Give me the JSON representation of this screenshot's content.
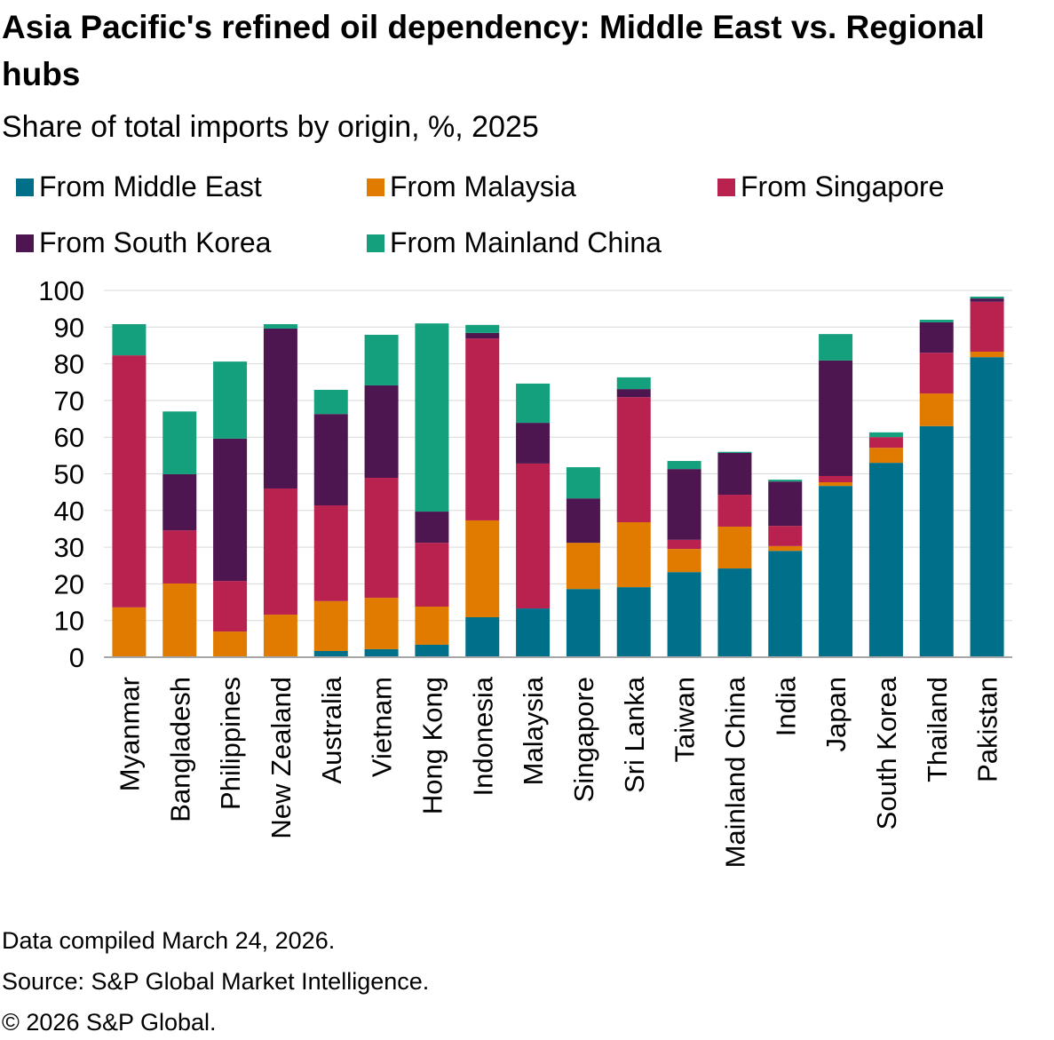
{
  "title": "Asia Pacific's refined oil dependency: Middle East vs. Regional hubs",
  "subtitle": "Share of total imports by origin, %, 2025",
  "footer": {
    "line1": "Data compiled March 24, 2026.",
    "line2": "Source: S&P Global Market Intelligence.",
    "line3": "© 2026 S&P Global."
  },
  "chart_data": {
    "type": "bar",
    "stacked": true,
    "title": "Asia Pacific's refined oil dependency: Middle East vs. Regional hubs",
    "subtitle": "Share of total imports by origin, %, 2025",
    "xlabel": "",
    "ylabel": "",
    "ylim": [
      0,
      100
    ],
    "yticks": [
      "0",
      "10",
      "20",
      "30",
      "40",
      "50",
      "60",
      "70",
      "80",
      "90",
      "100"
    ],
    "grid": true,
    "legend_position": "top",
    "categories": [
      "Myanmar",
      "Bangladesh",
      "Philippines",
      "New Zealand",
      "Australia",
      "Vietnam",
      "Hong Kong",
      "Indonesia",
      "Malaysia",
      "Singapore",
      "Sri Lanka",
      "Taiwan",
      "Mainland China",
      "India",
      "Japan",
      "South Korea",
      "Thailand",
      "Pakistan"
    ],
    "series": [
      {
        "name": "From Middle East",
        "color": "#006f8a",
        "values": [
          0,
          0,
          0,
          0,
          1.7,
          2.2,
          3.4,
          10.9,
          13.3,
          18.6,
          19.1,
          23.2,
          24.2,
          29.0,
          46.7,
          53.0,
          63.0,
          81.8
        ]
      },
      {
        "name": "From Malaysia",
        "color": "#e07b00",
        "values": [
          13.6,
          20.1,
          7.0,
          11.6,
          13.6,
          14.0,
          10.4,
          26.4,
          0,
          12.6,
          17.7,
          6.3,
          11.4,
          1.3,
          1.0,
          4.1,
          8.9,
          1.5
        ]
      },
      {
        "name": "From Singapore",
        "color": "#b9214f",
        "values": [
          68.7,
          14.5,
          13.8,
          34.4,
          26.1,
          32.7,
          17.4,
          49.6,
          39.5,
          0,
          34.1,
          2.5,
          8.7,
          5.5,
          1.7,
          2.9,
          11.1,
          13.6
        ]
      },
      {
        "name": "From South Korea",
        "color": "#4e1650",
        "values": [
          0,
          15.3,
          38.8,
          43.6,
          24.9,
          25.2,
          8.5,
          1.5,
          11.1,
          12.1,
          2.2,
          19.3,
          11.4,
          12.1,
          31.5,
          0,
          8.3,
          0.9
        ]
      },
      {
        "name": "From Mainland China",
        "color": "#14a07c",
        "values": [
          8.5,
          17.1,
          21.0,
          1.2,
          6.6,
          13.8,
          51.3,
          2.2,
          10.7,
          8.5,
          3.2,
          2.2,
          0.3,
          0.5,
          7.2,
          1.3,
          0.7,
          0.5
        ]
      }
    ]
  }
}
